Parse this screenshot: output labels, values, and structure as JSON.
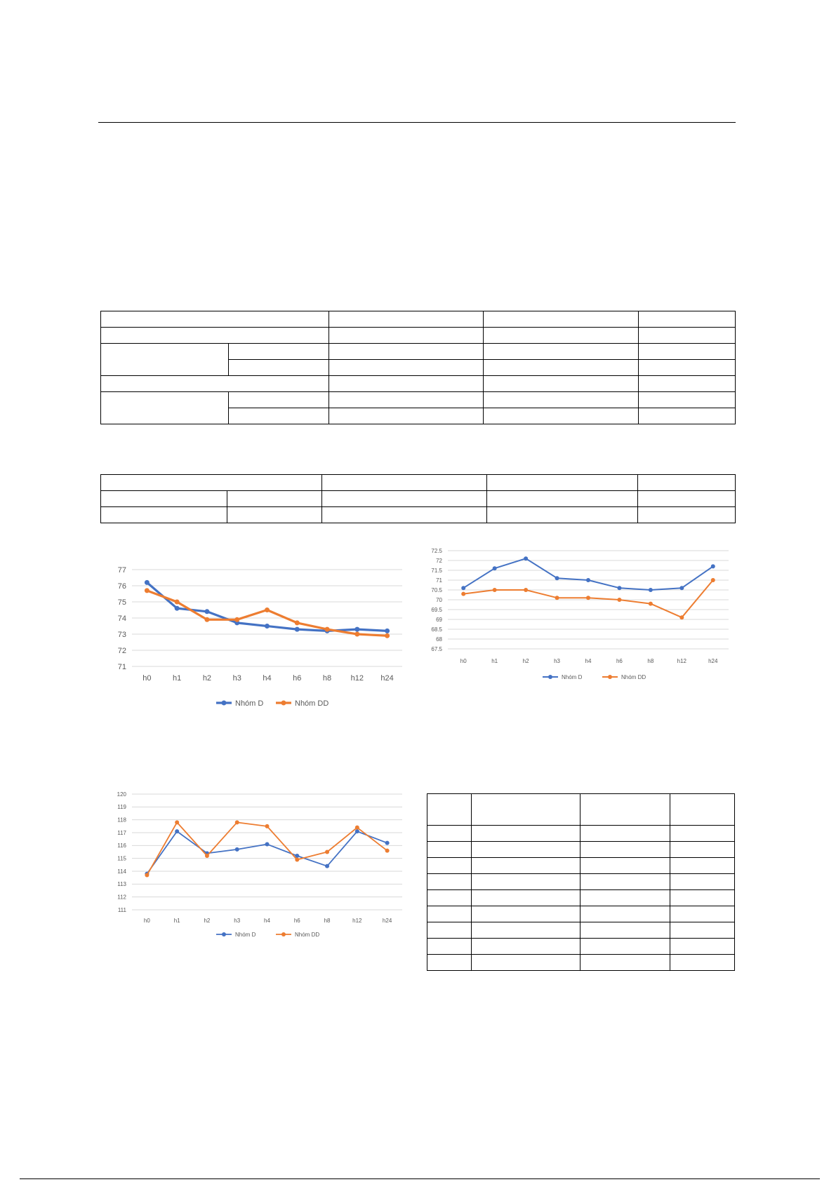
{
  "charts": [
    {
      "type": "line",
      "categories": [
        "h0",
        "h1",
        "h2",
        "h3",
        "h4",
        "h6",
        "h8",
        "h12",
        "h24"
      ],
      "ylim": [
        71,
        77
      ],
      "yticks": [
        "71",
        "72",
        "73",
        "74",
        "75",
        "76",
        "77"
      ],
      "series": [
        {
          "name": "Nhóm D",
          "values": [
            76.2,
            74.6,
            74.4,
            73.7,
            73.5,
            73.3,
            73.2,
            73.3,
            73.2
          ],
          "color": "#4472C4"
        },
        {
          "name": "Nhóm DD",
          "values": [
            75.7,
            75.0,
            73.9,
            73.9,
            74.5,
            73.7,
            73.3,
            73.0,
            72.9
          ],
          "color": "#ED7D31"
        }
      ]
    },
    {
      "type": "line",
      "categories": [
        "h0",
        "h1",
        "h2",
        "h3",
        "h4",
        "h6",
        "h8",
        "h12",
        "h24"
      ],
      "ylim": [
        67.5,
        72.5
      ],
      "yticks": [
        "67.5",
        "68",
        "68.5",
        "69",
        "69.5",
        "70",
        "70.5",
        "71",
        "71.5",
        "72",
        "72.5"
      ],
      "series": [
        {
          "name": "Nhóm D",
          "values": [
            70.6,
            71.6,
            72.1,
            71.1,
            71.0,
            70.6,
            70.5,
            70.6,
            71.7
          ],
          "color": "#4472C4"
        },
        {
          "name": "Nhóm DD",
          "values": [
            70.3,
            70.5,
            70.5,
            70.1,
            70.1,
            70.0,
            69.8,
            69.1,
            71.0
          ],
          "color": "#ED7D31"
        }
      ]
    },
    {
      "type": "line",
      "categories": [
        "h0",
        "h1",
        "h2",
        "h3",
        "h4",
        "h6",
        "h8",
        "h12",
        "h24"
      ],
      "ylim": [
        111,
        120
      ],
      "yticks": [
        "111",
        "112",
        "113",
        "114",
        "115",
        "116",
        "117",
        "118",
        "119",
        "120"
      ],
      "series": [
        {
          "name": "Nhóm D",
          "values": [
            113.8,
            117.1,
            115.4,
            115.7,
            116.1,
            115.2,
            114.4,
            117.1,
            116.2
          ],
          "color": "#4472C4"
        },
        {
          "name": "Nhóm DD",
          "values": [
            113.7,
            117.8,
            115.2,
            117.8,
            117.5,
            114.9,
            115.5,
            117.4,
            115.6
          ],
          "color": "#ED7D31"
        }
      ]
    }
  ]
}
